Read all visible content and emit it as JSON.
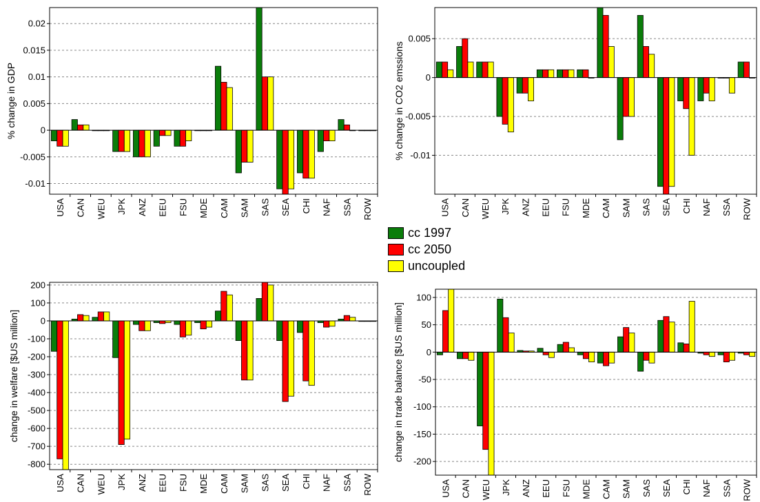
{
  "colors": {
    "cc_1997": "#0A7D0A",
    "cc_2050": "#FF0000",
    "uncoupled": "#FFFF00",
    "grid": "#888888",
    "axis": "#000000"
  },
  "legend": [
    {
      "key": "cc_1997",
      "label": "cc 1997"
    },
    {
      "key": "cc_2050",
      "label": "cc 2050"
    },
    {
      "key": "uncoupled",
      "label": "uncoupled"
    }
  ],
  "chart_data": [
    {
      "type": "bar",
      "ylabel": "% change in GDP",
      "categories": [
        "USA",
        "CAN",
        "WEU",
        "JPK",
        "ANZ",
        "EEU",
        "FSU",
        "MDE",
        "CAM",
        "SAM",
        "SAS",
        "SEA",
        "CHI",
        "NAF",
        "SSA",
        "ROW"
      ],
      "ylim": [
        -0.012,
        0.023
      ],
      "yticks": [
        -0.01,
        -0.005,
        0,
        0.005,
        0.01,
        0.015,
        0.02
      ],
      "ytick_labels": [
        "-0.01",
        "-0.005",
        "0",
        "0.005",
        "0.01",
        "0.015",
        "0.02"
      ],
      "grid": true,
      "series": [
        {
          "name": "cc 1997",
          "color_key": "cc_1997",
          "values": [
            -0.002,
            0.002,
            0,
            -0.004,
            -0.005,
            -0.003,
            -0.003,
            0,
            0.012,
            -0.008,
            0.023,
            -0.011,
            -0.008,
            -0.004,
            0.002,
            0
          ]
        },
        {
          "name": "cc 2050",
          "color_key": "cc_2050",
          "values": [
            -0.003,
            0.001,
            0,
            -0.004,
            -0.005,
            -0.001,
            -0.003,
            0,
            0.009,
            -0.006,
            0.01,
            -0.012,
            -0.009,
            -0.002,
            0.001,
            0
          ]
        },
        {
          "name": "uncoupled",
          "color_key": "uncoupled",
          "values": [
            -0.003,
            0.001,
            0,
            -0.004,
            -0.005,
            -0.001,
            -0.002,
            0,
            0.008,
            -0.006,
            0.01,
            -0.011,
            -0.009,
            -0.002,
            0,
            0
          ]
        }
      ]
    },
    {
      "type": "bar",
      "ylabel": "% change in CO2 emssions",
      "categories": [
        "USA",
        "CAN",
        "WEU",
        "JPK",
        "ANZ",
        "EEU",
        "FSU",
        "MDE",
        "CAM",
        "SAM",
        "SAS",
        "SEA",
        "CHI",
        "NAF",
        "SSA",
        "ROW"
      ],
      "ylim": [
        -0.015,
        0.009
      ],
      "yticks": [
        -0.01,
        -0.005,
        0,
        0.005
      ],
      "ytick_labels": [
        "-0.01",
        "-0.005",
        "0",
        "0.005"
      ],
      "grid": true,
      "series": [
        {
          "name": "cc 1997",
          "color_key": "cc_1997",
          "values": [
            0.002,
            0.004,
            0.002,
            -0.005,
            -0.002,
            0.001,
            0.001,
            0.001,
            0.009,
            -0.008,
            0.008,
            -0.014,
            -0.003,
            -0.003,
            0,
            0.002
          ]
        },
        {
          "name": "cc 2050",
          "color_key": "cc_2050",
          "values": [
            0.002,
            0.005,
            0.002,
            -0.006,
            -0.002,
            0.001,
            0.001,
            0.001,
            0.008,
            -0.005,
            0.004,
            -0.015,
            -0.004,
            -0.002,
            0,
            0.002
          ]
        },
        {
          "name": "uncoupled",
          "color_key": "uncoupled",
          "values": [
            0.001,
            0.002,
            0.002,
            -0.007,
            -0.003,
            0.001,
            0.001,
            0,
            0.004,
            -0.005,
            0.003,
            -0.014,
            -0.01,
            -0.003,
            -0.002,
            0
          ]
        }
      ]
    },
    {
      "type": "bar",
      "ylabel": "change in welfare [$US million]",
      "categories": [
        "USA",
        "CAN",
        "WEU",
        "JPK",
        "ANZ",
        "EEU",
        "FSU",
        "MDE",
        "CAM",
        "SAM",
        "SAS",
        "SEA",
        "CHI",
        "NAF",
        "SSA",
        "ROW"
      ],
      "ylim": [
        -830,
        215
      ],
      "yticks": [
        -800,
        -700,
        -600,
        -500,
        -400,
        -300,
        -200,
        -100,
        0,
        100,
        200
      ],
      "ytick_labels": [
        "-800",
        "-700",
        "-600",
        "-500",
        "-400",
        "-300",
        "-200",
        "-100",
        "0",
        "100",
        "200"
      ],
      "grid": true,
      "series": [
        {
          "name": "cc 1997",
          "color_key": "cc_1997",
          "values": [
            -170,
            10,
            20,
            -205,
            -20,
            -10,
            -20,
            -10,
            55,
            -110,
            125,
            -110,
            -65,
            -10,
            10,
            -2
          ]
        },
        {
          "name": "cc 2050",
          "color_key": "cc_2050",
          "values": [
            -770,
            35,
            50,
            -690,
            -55,
            -15,
            -90,
            -45,
            165,
            -330,
            215,
            -450,
            -335,
            -35,
            30,
            -3
          ]
        },
        {
          "name": "uncoupled",
          "color_key": "uncoupled",
          "values": [
            -830,
            30,
            50,
            -660,
            -55,
            -10,
            -80,
            -35,
            145,
            -330,
            200,
            -420,
            -360,
            -30,
            20,
            -3
          ]
        }
      ]
    },
    {
      "type": "bar",
      "ylabel": "change in trade balance [$US million]",
      "categories": [
        "USA",
        "CAN",
        "WEU",
        "JPK",
        "ANZ",
        "EEU",
        "FSU",
        "MDE",
        "CAM",
        "SAM",
        "SAS",
        "SEA",
        "CHI",
        "NAF",
        "SSA",
        "ROW"
      ],
      "ylim": [
        -225,
        115
      ],
      "yticks": [
        -200,
        -150,
        -100,
        -50,
        0,
        50,
        100
      ],
      "ytick_labels": [
        "-200",
        "-150",
        "-100",
        "-50",
        "0",
        "50",
        "100"
      ],
      "grid": true,
      "series": [
        {
          "name": "cc 1997",
          "color_key": "cc_1997",
          "values": [
            -5,
            -12,
            -135,
            97,
            3,
            7,
            14,
            -5,
            -20,
            28,
            -35,
            58,
            17,
            -2,
            -5,
            -2
          ]
        },
        {
          "name": "cc 2050",
          "color_key": "cc_2050",
          "values": [
            76,
            -12,
            -178,
            63,
            2,
            -5,
            18,
            -12,
            -25,
            45,
            -15,
            65,
            15,
            -5,
            -18,
            -5
          ]
        },
        {
          "name": "uncoupled",
          "color_key": "uncoupled",
          "values": [
            115,
            -15,
            -225,
            35,
            2,
            -10,
            8,
            -18,
            -20,
            35,
            -20,
            55,
            93,
            -8,
            -15,
            -8
          ]
        }
      ]
    }
  ]
}
